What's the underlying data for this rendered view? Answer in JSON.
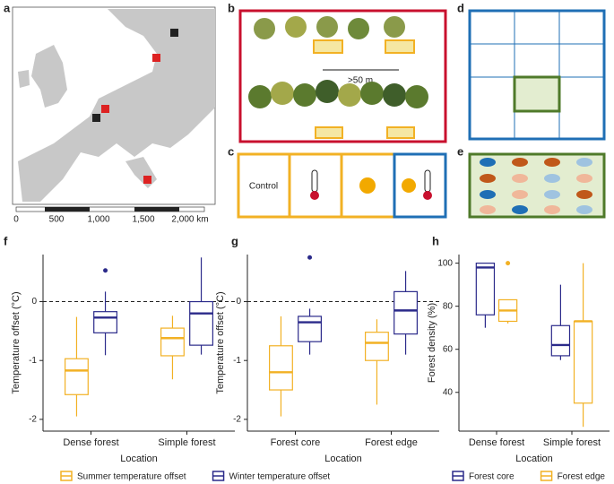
{
  "panels": {
    "labels": [
      "a",
      "b",
      "c",
      "d",
      "e",
      "f",
      "g",
      "h"
    ]
  },
  "map": {
    "scale_labels": [
      "0",
      "500",
      "1,000",
      "1,500",
      "2,000 km"
    ]
  },
  "design": {
    "distance": ">50 m",
    "control": "Control"
  },
  "chart_data": [
    {
      "type": "box",
      "ylabel": "Temperature offset (°C)",
      "xlabel": "Location",
      "categories": [
        "Dense forest",
        "Simple forest"
      ],
      "ylim": [
        -2.2,
        0.8
      ],
      "yticks": [
        -2,
        -1,
        0
      ],
      "hline": 0,
      "series": [
        {
          "name": "Summer temperature offset",
          "color": "#f2b124",
          "boxes": [
            {
              "whislo": -1.95,
              "q1": -1.58,
              "med": -1.17,
              "q3": -0.97,
              "whishi": -0.26,
              "outliers": []
            },
            {
              "whislo": -1.32,
              "q1": -0.92,
              "med": -0.62,
              "q3": -0.45,
              "whishi": -0.24,
              "outliers": []
            }
          ]
        },
        {
          "name": "Winter temperature offset",
          "color": "#2b2a8a",
          "boxes": [
            {
              "whislo": -0.91,
              "q1": -0.53,
              "med": -0.27,
              "q3": -0.17,
              "whishi": 0.17,
              "outliers": [
                0.53
              ]
            },
            {
              "whislo": -0.9,
              "q1": -0.74,
              "med": -0.2,
              "q3": 0.0,
              "whishi": 0.75,
              "outliers": []
            }
          ]
        }
      ]
    },
    {
      "type": "box",
      "ylabel": "Temperature offset (°C)",
      "xlabel": "Location",
      "categories": [
        "Forest core",
        "Forest edge"
      ],
      "ylim": [
        -2.2,
        0.8
      ],
      "yticks": [
        -2,
        -1,
        0
      ],
      "hline": 0,
      "series": [
        {
          "color": "#f2b124",
          "boxes": [
            {
              "whislo": -1.95,
              "q1": -1.5,
              "med": -1.2,
              "q3": -0.75,
              "whishi": -0.25,
              "outliers": []
            },
            {
              "whislo": -1.75,
              "q1": -1.0,
              "med": -0.7,
              "q3": -0.52,
              "whishi": -0.3,
              "outliers": []
            }
          ]
        },
        {
          "color": "#2b2a8a",
          "boxes": [
            {
              "whislo": -0.9,
              "q1": -0.68,
              "med": -0.35,
              "q3": -0.25,
              "whishi": -0.12,
              "outliers": [
                0.75
              ]
            },
            {
              "whislo": -0.9,
              "q1": -0.55,
              "med": -0.15,
              "q3": 0.17,
              "whishi": 0.52,
              "outliers": []
            }
          ]
        }
      ]
    },
    {
      "type": "box",
      "ylabel": "Forest density (%)",
      "xlabel": "Location",
      "categories": [
        "Dense forest",
        "Simple forest"
      ],
      "ylim": [
        22,
        104
      ],
      "yticks": [
        40,
        60,
        80,
        100
      ],
      "series": [
        {
          "name": "Forest core",
          "color": "#2b2a8a",
          "boxes": [
            {
              "whislo": 70,
              "q1": 76,
              "med": 98,
              "q3": 100,
              "whishi": 100,
              "outliers": []
            },
            {
              "whislo": 55,
              "q1": 57,
              "med": 62,
              "q3": 71,
              "whishi": 90,
              "outliers": []
            }
          ]
        },
        {
          "name": "Forest edge",
          "color": "#f2b124",
          "boxes": [
            {
              "whislo": 72,
              "q1": 73,
              "med": 78,
              "q3": 83,
              "whishi": 83,
              "outliers": [
                100
              ]
            },
            {
              "whislo": 24,
              "q1": 35,
              "med": 73,
              "q3": 73,
              "whishi": 100,
              "outliers": []
            }
          ]
        }
      ]
    }
  ]
}
